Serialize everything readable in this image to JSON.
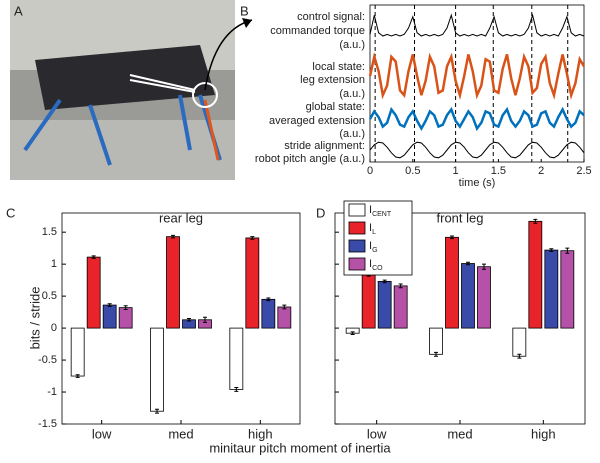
{
  "panel_labels": [
    "A",
    "B",
    "C",
    "D"
  ],
  "chart_data": [
    {
      "type": "line",
      "xlabel": "time (s)",
      "xlim": [
        0,
        2.5
      ],
      "xticks": [
        0,
        0.5,
        1,
        1.5,
        2,
        2.5
      ],
      "stride_boundaries": [
        0.06,
        0.52,
        1.0,
        1.44,
        1.89,
        2.31
      ],
      "x": [
        0,
        0.05,
        0.1,
        0.15,
        0.2,
        0.25,
        0.3,
        0.35,
        0.4,
        0.45,
        0.5,
        0.55,
        0.6,
        0.65,
        0.7,
        0.75,
        0.8,
        0.85,
        0.9,
        0.95,
        1,
        1.05,
        1.1,
        1.15,
        1.2,
        1.25,
        1.3,
        1.35,
        1.4,
        1.45,
        1.5,
        1.55,
        1.6,
        1.65,
        1.7,
        1.75,
        1.8,
        1.85,
        1.9,
        1.95,
        2,
        2.05,
        2.1,
        2.15,
        2.2,
        2.25,
        2.3,
        2.35,
        2.4,
        2.45,
        2.5
      ],
      "series": [
        {
          "label_lines": [
            "control signal:",
            "commanded torque",
            "(a.u.)"
          ],
          "color": "#000000",
          "width": 1,
          "values": [
            0.3,
            0.9,
            0.35,
            0.25,
            0.3,
            0.25,
            0.3,
            0.25,
            0.3,
            0.5,
            0.85,
            0.35,
            0.25,
            0.3,
            0.25,
            0.3,
            0.25,
            0.3,
            0.5,
            0.9,
            0.35,
            0.25,
            0.3,
            0.25,
            0.3,
            0.25,
            0.3,
            0.25,
            0.5,
            0.85,
            0.35,
            0.25,
            0.3,
            0.25,
            0.3,
            0.25,
            0.3,
            0.5,
            0.9,
            0.35,
            0.25,
            0.3,
            0.25,
            0.3,
            0.25,
            0.5,
            0.85,
            0.35,
            0.25,
            0.3,
            0.25
          ]
        },
        {
          "label_lines": [
            "local state:",
            "leg extension",
            "(a.u.)"
          ],
          "color": "#d95319",
          "width": 2.5,
          "values": [
            0.5,
            0.9,
            0.6,
            0.1,
            0.3,
            0.9,
            0.8,
            0.2,
            0.1,
            0.6,
            0.95,
            0.5,
            0.1,
            0.4,
            0.9,
            0.7,
            0.15,
            0.2,
            0.7,
            0.9,
            0.4,
            0.1,
            0.5,
            0.95,
            0.6,
            0.1,
            0.3,
            0.85,
            0.8,
            0.2,
            0.15,
            0.65,
            0.95,
            0.45,
            0.1,
            0.45,
            0.9,
            0.7,
            0.15,
            0.25,
            0.75,
            0.9,
            0.35,
            0.1,
            0.55,
            0.95,
            0.55,
            0.1,
            0.35,
            0.85,
            0.7
          ]
        },
        {
          "label_lines": [
            "global state:",
            "averaged extension",
            "(a.u.)"
          ],
          "color": "#0072bd",
          "width": 2.5,
          "values": [
            0.5,
            0.7,
            0.55,
            0.3,
            0.4,
            0.75,
            0.6,
            0.35,
            0.3,
            0.55,
            0.7,
            0.45,
            0.25,
            0.45,
            0.7,
            0.6,
            0.3,
            0.35,
            0.6,
            0.75,
            0.45,
            0.3,
            0.5,
            0.7,
            0.55,
            0.25,
            0.4,
            0.7,
            0.65,
            0.35,
            0.3,
            0.6,
            0.75,
            0.45,
            0.3,
            0.45,
            0.7,
            0.6,
            0.3,
            0.35,
            0.65,
            0.7,
            0.4,
            0.3,
            0.55,
            0.75,
            0.5,
            0.3,
            0.4,
            0.7,
            0.6
          ]
        },
        {
          "label_lines": [
            "stride alignment:",
            "robot pitch angle (a.u.)"
          ],
          "color": "#000000",
          "width": 1,
          "values": [
            0.5,
            0.76,
            0.89,
            0.85,
            0.64,
            0.36,
            0.15,
            0.11,
            0.24,
            0.5,
            0.76,
            0.89,
            0.85,
            0.64,
            0.36,
            0.15,
            0.11,
            0.24,
            0.5,
            0.76,
            0.89,
            0.85,
            0.64,
            0.36,
            0.15,
            0.11,
            0.24,
            0.5,
            0.76,
            0.89,
            0.85,
            0.64,
            0.36,
            0.15,
            0.11,
            0.24,
            0.5,
            0.76,
            0.89,
            0.85,
            0.64,
            0.36,
            0.15,
            0.11,
            0.24,
            0.5,
            0.76,
            0.89,
            0.85,
            0.64,
            0.36
          ]
        }
      ]
    },
    {
      "type": "bar",
      "title": "rear leg",
      "ylabel": "bits / stride",
      "xlabel": "minitaur pitch moment of inertia",
      "categories": [
        "low",
        "med",
        "high"
      ],
      "ylim": [
        -1.5,
        1.8
      ],
      "yticks": [
        -1.5,
        -1,
        -0.5,
        0,
        0.5,
        1,
        1.5
      ],
      "series": [
        {
          "color": "#ffffff",
          "values": [
            -0.75,
            -1.3,
            -0.96
          ],
          "errors": [
            0.02,
            0.03,
            0.03
          ]
        },
        {
          "color": "#e8242a",
          "values": [
            1.11,
            1.43,
            1.41
          ],
          "errors": [
            0.02,
            0.02,
            0.02
          ]
        },
        {
          "color": "#3a4aa8",
          "values": [
            0.36,
            0.13,
            0.45
          ],
          "errors": [
            0.02,
            0.02,
            0.02
          ]
        },
        {
          "color": "#b651a8",
          "values": [
            0.32,
            0.13,
            0.33
          ],
          "errors": [
            0.03,
            0.04,
            0.03
          ]
        }
      ]
    },
    {
      "type": "bar",
      "title": "front leg",
      "categories": [
        "low",
        "med",
        "high"
      ],
      "ylim": [
        -1.5,
        1.8
      ],
      "yticks": [
        -1.5,
        -1,
        -0.5,
        0,
        0.5,
        1,
        1.5
      ],
      "series": [
        {
          "name": "I",
          "subscript": "CENT",
          "color": "#ffffff",
          "values": [
            -0.08,
            -0.41,
            -0.44
          ],
          "errors": [
            0.02,
            0.03,
            0.03
          ]
        },
        {
          "name": "I",
          "subscript": "L",
          "color": "#e8242a",
          "values": [
            0.83,
            1.42,
            1.67
          ],
          "errors": [
            0.02,
            0.02,
            0.03
          ]
        },
        {
          "name": "I",
          "subscript": "G",
          "color": "#3a4aa8",
          "values": [
            0.73,
            1.01,
            1.22
          ],
          "errors": [
            0.02,
            0.02,
            0.02
          ]
        },
        {
          "name": "I",
          "subscript": "CO",
          "color": "#b651a8",
          "values": [
            0.66,
            0.96,
            1.21
          ],
          "errors": [
            0.03,
            0.04,
            0.04
          ]
        }
      ]
    }
  ]
}
